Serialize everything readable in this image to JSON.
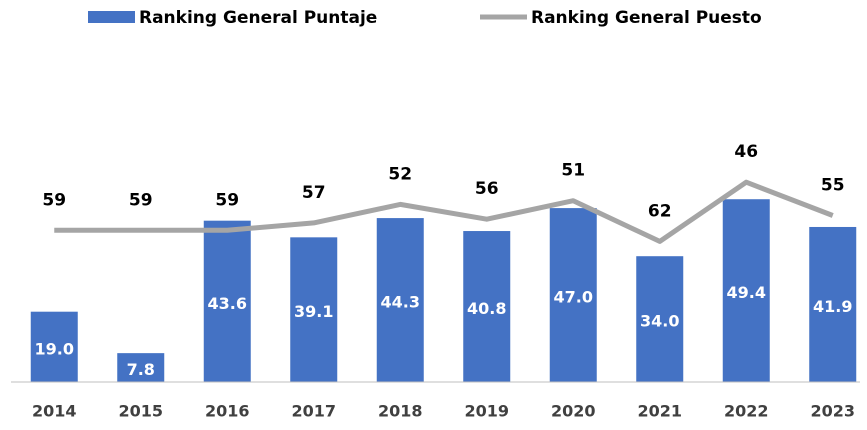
{
  "chart_data": {
    "type": "bar-line",
    "categories": [
      "2014",
      "2015",
      "2016",
      "2017",
      "2018",
      "2019",
      "2020",
      "2021",
      "2022",
      "2023"
    ],
    "series": [
      {
        "name": "Ranking General Puntaje",
        "type": "bar",
        "color": "#4472c4",
        "values": [
          19,
          7.8,
          43.6,
          39.1,
          44.3,
          40.8,
          47,
          34,
          49.4,
          41.9
        ],
        "value_labels": [
          "19.0",
          "7.8",
          "43.6",
          "39.1",
          "44.3",
          "40.8",
          "47.0",
          "34.0",
          "49.4",
          "41.9"
        ]
      },
      {
        "name": "Ranking General Puesto",
        "type": "line",
        "axis": "y2",
        "color": "#a5a5a5",
        "values": [
          59,
          59,
          59,
          57,
          52,
          56,
          51,
          62,
          46,
          55
        ]
      }
    ],
    "ylim": [
      0,
      80
    ],
    "y2lim": [
      20,
      100
    ],
    "y2_reversed": true,
    "legend": "top"
  }
}
